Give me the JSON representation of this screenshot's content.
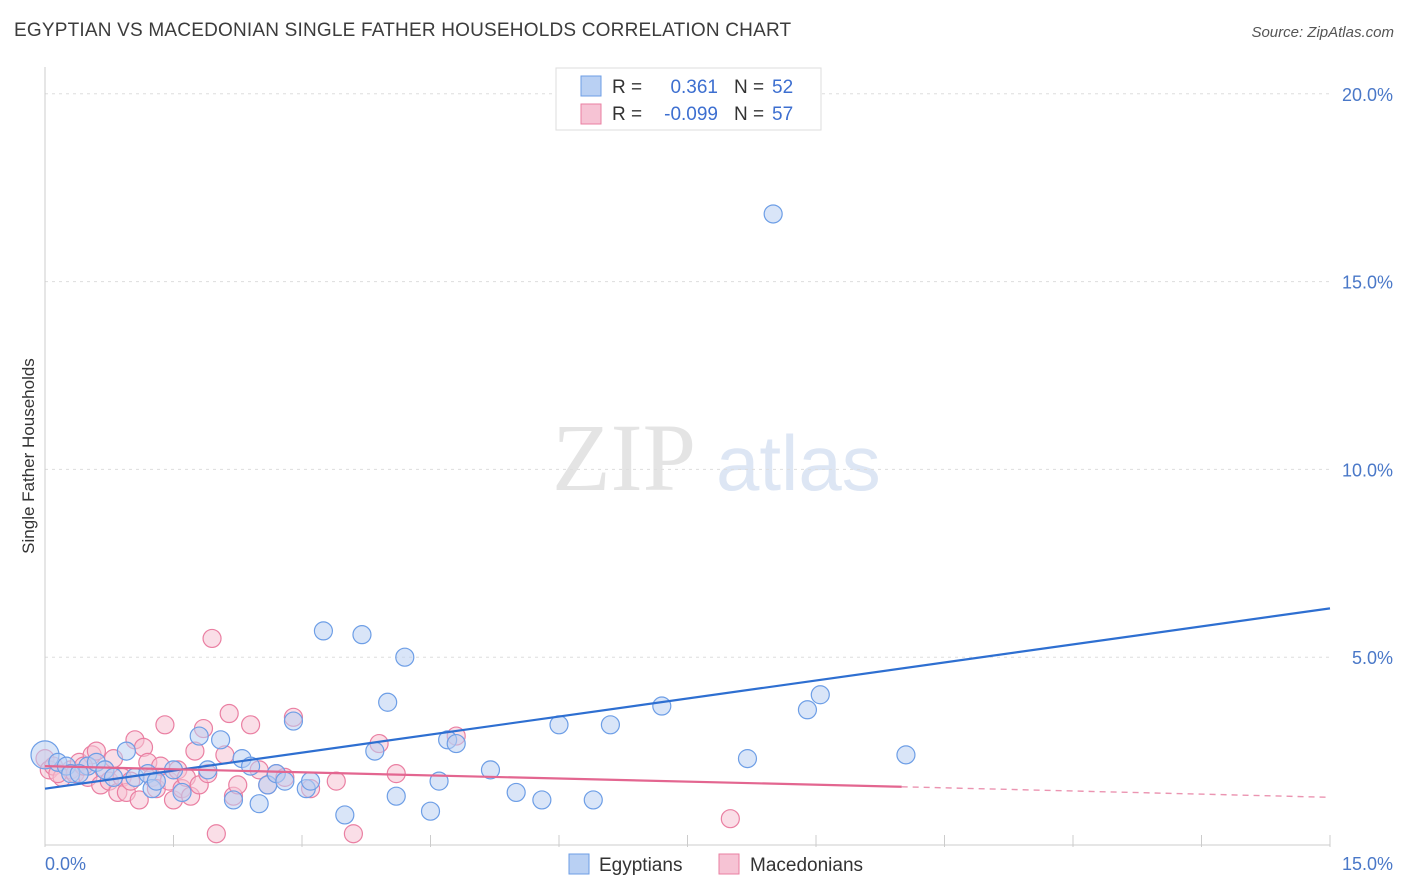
{
  "header": {
    "title": "EGYPTIAN VS MACEDONIAN SINGLE FATHER HOUSEHOLDS CORRELATION CHART",
    "source": "Source: ZipAtlas.com"
  },
  "watermark": {
    "zip": "ZIP",
    "atlas": "atlas"
  },
  "chart_data": {
    "type": "scatter",
    "title": "EGYPTIAN VS MACEDONIAN SINGLE FATHER HOUSEHOLDS CORRELATION CHART",
    "xlabel": "",
    "ylabel": "Single Father Households",
    "xlim": [
      0,
      15
    ],
    "ylim": [
      0,
      20.5
    ],
    "x_tick_labels": [
      "0.0%",
      "15.0%"
    ],
    "y_ticks": [
      5,
      10,
      15,
      20
    ],
    "y_tick_labels": [
      "5.0%",
      "10.0%",
      "15.0%",
      "20.0%"
    ],
    "grid": true,
    "legend": [
      {
        "r_label": "R =",
        "r_value": "0.361",
        "n_label": "N =",
        "n_value": "52"
      },
      {
        "r_label": "R =",
        "r_value": "-0.099",
        "n_label": "N =",
        "n_value": "57"
      }
    ],
    "colors": {
      "egyptians": "#6d9ee6",
      "egyptians_fill": "#b9d0f3",
      "macedonians": "#ea7fa2",
      "macedonians_fill": "#f6c3d4",
      "egyptians_line": "#2e6fd1",
      "macedonians_line": "#e36690"
    },
    "series": [
      {
        "name": "Egyptians",
        "trend": {
          "x": [
            0,
            15
          ],
          "y": [
            1.5,
            6.3
          ]
        },
        "points": [
          [
            0.0,
            2.4
          ],
          [
            0.15,
            2.2
          ],
          [
            0.25,
            2.1
          ],
          [
            0.3,
            1.9
          ],
          [
            0.5,
            2.1
          ],
          [
            0.6,
            2.2
          ],
          [
            0.7,
            2.0
          ],
          [
            0.8,
            1.8
          ],
          [
            0.95,
            2.5
          ],
          [
            1.05,
            1.8
          ],
          [
            1.2,
            1.9
          ],
          [
            1.25,
            1.5
          ],
          [
            1.5,
            2.0
          ],
          [
            1.6,
            1.4
          ],
          [
            1.8,
            2.9
          ],
          [
            1.9,
            2.0
          ],
          [
            2.05,
            2.8
          ],
          [
            2.2,
            1.2
          ],
          [
            2.3,
            2.3
          ],
          [
            2.4,
            2.1
          ],
          [
            2.5,
            1.1
          ],
          [
            2.6,
            1.6
          ],
          [
            2.7,
            1.9
          ],
          [
            2.8,
            1.7
          ],
          [
            2.9,
            3.3
          ],
          [
            3.05,
            1.5
          ],
          [
            3.1,
            1.7
          ],
          [
            3.25,
            5.7
          ],
          [
            3.5,
            0.8
          ],
          [
            3.7,
            5.6
          ],
          [
            3.85,
            2.5
          ],
          [
            4.0,
            3.8
          ],
          [
            4.1,
            1.3
          ],
          [
            4.2,
            5.0
          ],
          [
            4.5,
            0.9
          ],
          [
            4.6,
            1.7
          ],
          [
            4.7,
            2.8
          ],
          [
            4.8,
            2.7
          ],
          [
            5.2,
            2.0
          ],
          [
            5.5,
            1.4
          ],
          [
            5.8,
            1.2
          ],
          [
            6.0,
            3.2
          ],
          [
            6.4,
            1.2
          ],
          [
            6.6,
            3.2
          ],
          [
            7.2,
            3.7
          ],
          [
            8.2,
            2.3
          ],
          [
            8.5,
            16.8
          ],
          [
            8.9,
            3.6
          ],
          [
            9.05,
            4.0
          ],
          [
            10.05,
            2.4
          ],
          [
            1.3,
            1.7
          ],
          [
            0.4,
            1.9
          ]
        ]
      },
      {
        "name": "Macedonians",
        "trend": {
          "x": [
            0,
            10
          ],
          "y": [
            2.1,
            1.55
          ]
        },
        "trend_dashed": {
          "x": [
            10,
            15
          ],
          "y": [
            1.55,
            1.27
          ]
        },
        "points": [
          [
            0.0,
            2.3
          ],
          [
            0.05,
            2.0
          ],
          [
            0.1,
            2.1
          ],
          [
            0.2,
            1.8
          ],
          [
            0.3,
            2.0
          ],
          [
            0.35,
            1.9
          ],
          [
            0.4,
            2.2
          ],
          [
            0.5,
            1.8
          ],
          [
            0.55,
            2.4
          ],
          [
            0.6,
            2.5
          ],
          [
            0.65,
            1.6
          ],
          [
            0.7,
            2.0
          ],
          [
            0.75,
            1.7
          ],
          [
            0.8,
            2.3
          ],
          [
            0.85,
            1.4
          ],
          [
            0.9,
            1.8
          ],
          [
            0.95,
            1.4
          ],
          [
            1.0,
            1.7
          ],
          [
            1.05,
            2.8
          ],
          [
            1.1,
            1.2
          ],
          [
            1.15,
            2.6
          ],
          [
            1.2,
            2.2
          ],
          [
            1.25,
            1.8
          ],
          [
            1.3,
            1.5
          ],
          [
            1.4,
            3.2
          ],
          [
            1.45,
            1.7
          ],
          [
            1.5,
            1.2
          ],
          [
            1.55,
            2.0
          ],
          [
            1.6,
            1.5
          ],
          [
            1.65,
            1.8
          ],
          [
            1.7,
            1.3
          ],
          [
            1.75,
            2.5
          ],
          [
            1.8,
            1.6
          ],
          [
            1.85,
            3.1
          ],
          [
            1.9,
            1.9
          ],
          [
            1.95,
            5.5
          ],
          [
            2.0,
            0.3
          ],
          [
            2.1,
            2.4
          ],
          [
            2.15,
            3.5
          ],
          [
            2.2,
            1.3
          ],
          [
            2.4,
            3.2
          ],
          [
            2.5,
            2.0
          ],
          [
            2.6,
            1.6
          ],
          [
            2.7,
            1.9
          ],
          [
            2.8,
            1.8
          ],
          [
            2.9,
            3.4
          ],
          [
            3.1,
            1.5
          ],
          [
            3.4,
            1.7
          ],
          [
            3.6,
            0.3
          ],
          [
            3.9,
            2.7
          ],
          [
            4.1,
            1.9
          ],
          [
            4.8,
            2.9
          ],
          [
            8.0,
            0.7
          ],
          [
            0.45,
            2.1
          ],
          [
            1.35,
            2.1
          ],
          [
            2.25,
            1.6
          ],
          [
            0.15,
            1.9
          ]
        ]
      }
    ]
  }
}
